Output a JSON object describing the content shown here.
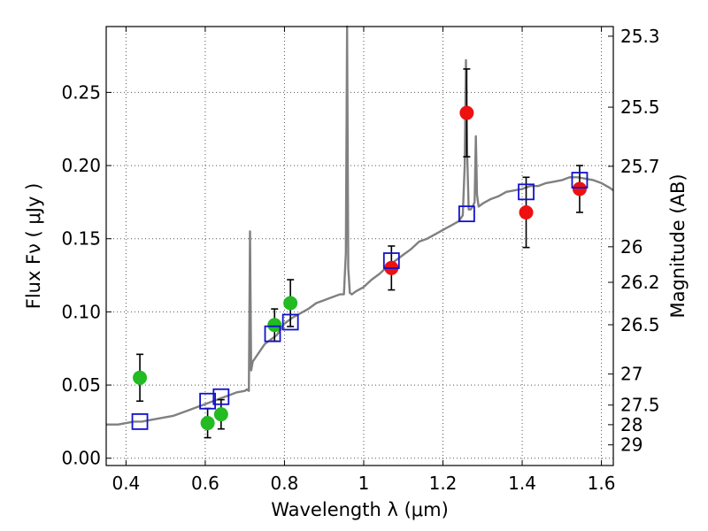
{
  "chart_data": {
    "type": "scatter",
    "xlabel": "Wavelength  λ (μm)",
    "ylabel": "Flux  Fν  ( μJy )",
    "y2label": "Magnitude (AB)",
    "xlim": [
      0.35,
      1.63
    ],
    "ylim": [
      -0.005,
      0.295
    ],
    "grid": true,
    "x_ticks": [
      0.4,
      0.6,
      0.8,
      1.0,
      1.2,
      1.4,
      1.6
    ],
    "x_tick_labels": [
      "0.4",
      "0.6",
      "0.8",
      "1",
      "1.2",
      "1.4",
      "1.6"
    ],
    "y_ticks": [
      0.0,
      0.05,
      0.1,
      0.15,
      0.2,
      0.25
    ],
    "y_tick_labels": [
      "0.00",
      "0.05",
      "0.10",
      "0.15",
      "0.20",
      "0.25"
    ],
    "y2_tick_labels": [
      "25.3",
      "25.5",
      "25.7",
      "26",
      "26.2",
      "26.5",
      "27",
      "27.5",
      "28",
      "29"
    ],
    "y2_tick_flux": [
      0.2884,
      0.2399,
      0.1995,
      0.1445,
      0.1202,
      0.0912,
      0.0575,
      0.0363,
      0.0229,
      0.0091
    ],
    "colors": {
      "model": "#808080",
      "green": "#22bb22",
      "red": "#ee1111",
      "model_box": "#1111cc",
      "errorbar": "#000000",
      "grid": "#555555"
    },
    "series": [
      {
        "key": "model-spectrum",
        "kind": "line",
        "x": [
          0.35,
          0.36,
          0.38,
          0.4,
          0.42,
          0.44,
          0.46,
          0.48,
          0.5,
          0.52,
          0.54,
          0.56,
          0.58,
          0.6,
          0.62,
          0.64,
          0.66,
          0.68,
          0.7,
          0.705,
          0.71,
          0.713,
          0.716,
          0.72,
          0.73,
          0.74,
          0.75,
          0.76,
          0.77,
          0.78,
          0.8,
          0.82,
          0.84,
          0.86,
          0.88,
          0.9,
          0.92,
          0.94,
          0.95,
          0.955,
          0.958,
          0.961,
          0.965,
          0.97,
          0.98,
          1.0,
          1.02,
          1.04,
          1.06,
          1.08,
          1.1,
          1.12,
          1.14,
          1.16,
          1.18,
          1.2,
          1.22,
          1.24,
          1.25,
          1.255,
          1.258,
          1.261,
          1.265,
          1.27,
          1.275,
          1.28,
          1.283,
          1.286,
          1.29,
          1.3,
          1.32,
          1.34,
          1.36,
          1.38,
          1.4,
          1.42,
          1.44,
          1.46,
          1.48,
          1.5,
          1.52,
          1.54,
          1.56,
          1.58,
          1.6,
          1.62,
          1.63
        ],
        "y": [
          0.023,
          0.023,
          0.023,
          0.024,
          0.025,
          0.025,
          0.026,
          0.027,
          0.028,
          0.029,
          0.031,
          0.033,
          0.035,
          0.037,
          0.039,
          0.041,
          0.043,
          0.045,
          0.046,
          0.047,
          0.046,
          0.155,
          0.06,
          0.066,
          0.07,
          0.074,
          0.078,
          0.08,
          0.082,
          0.084,
          0.092,
          0.096,
          0.099,
          0.102,
          0.106,
          0.108,
          0.11,
          0.112,
          0.112,
          0.14,
          0.295,
          0.13,
          0.113,
          0.112,
          0.114,
          0.117,
          0.122,
          0.126,
          0.131,
          0.135,
          0.139,
          0.143,
          0.148,
          0.15,
          0.153,
          0.156,
          0.159,
          0.162,
          0.166,
          0.2,
          0.272,
          0.21,
          0.17,
          0.17,
          0.172,
          0.175,
          0.22,
          0.18,
          0.172,
          0.174,
          0.177,
          0.179,
          0.182,
          0.183,
          0.184,
          0.186,
          0.186,
          0.188,
          0.189,
          0.19,
          0.192,
          0.192,
          0.191,
          0.19,
          0.188,
          0.185,
          0.183
        ]
      },
      {
        "key": "green-points",
        "kind": "errorbar",
        "points": [
          {
            "x": 0.435,
            "y": 0.055,
            "yerr": 0.016
          },
          {
            "x": 0.606,
            "y": 0.024,
            "yerr": 0.01
          },
          {
            "x": 0.64,
            "y": 0.03,
            "yerr": 0.01
          },
          {
            "x": 0.775,
            "y": 0.091,
            "yerr": 0.011
          },
          {
            "x": 0.815,
            "y": 0.106,
            "yerr": 0.016
          }
        ]
      },
      {
        "key": "red-points",
        "kind": "errorbar",
        "points": [
          {
            "x": 1.07,
            "y": 0.13,
            "yerr": 0.015
          },
          {
            "x": 1.26,
            "y": 0.236,
            "yerr": 0.03
          },
          {
            "x": 1.41,
            "y": 0.168,
            "yerr": 0.024
          },
          {
            "x": 1.545,
            "y": 0.184,
            "yerr": 0.016
          }
        ]
      },
      {
        "key": "model-boxes",
        "kind": "scatter",
        "points": [
          {
            "x": 0.435,
            "y": 0.025
          },
          {
            "x": 0.606,
            "y": 0.039
          },
          {
            "x": 0.64,
            "y": 0.042
          },
          {
            "x": 0.77,
            "y": 0.085
          },
          {
            "x": 0.815,
            "y": 0.093
          },
          {
            "x": 1.07,
            "y": 0.135
          },
          {
            "x": 1.26,
            "y": 0.167
          },
          {
            "x": 1.41,
            "y": 0.182
          },
          {
            "x": 1.545,
            "y": 0.19
          }
        ]
      }
    ]
  }
}
